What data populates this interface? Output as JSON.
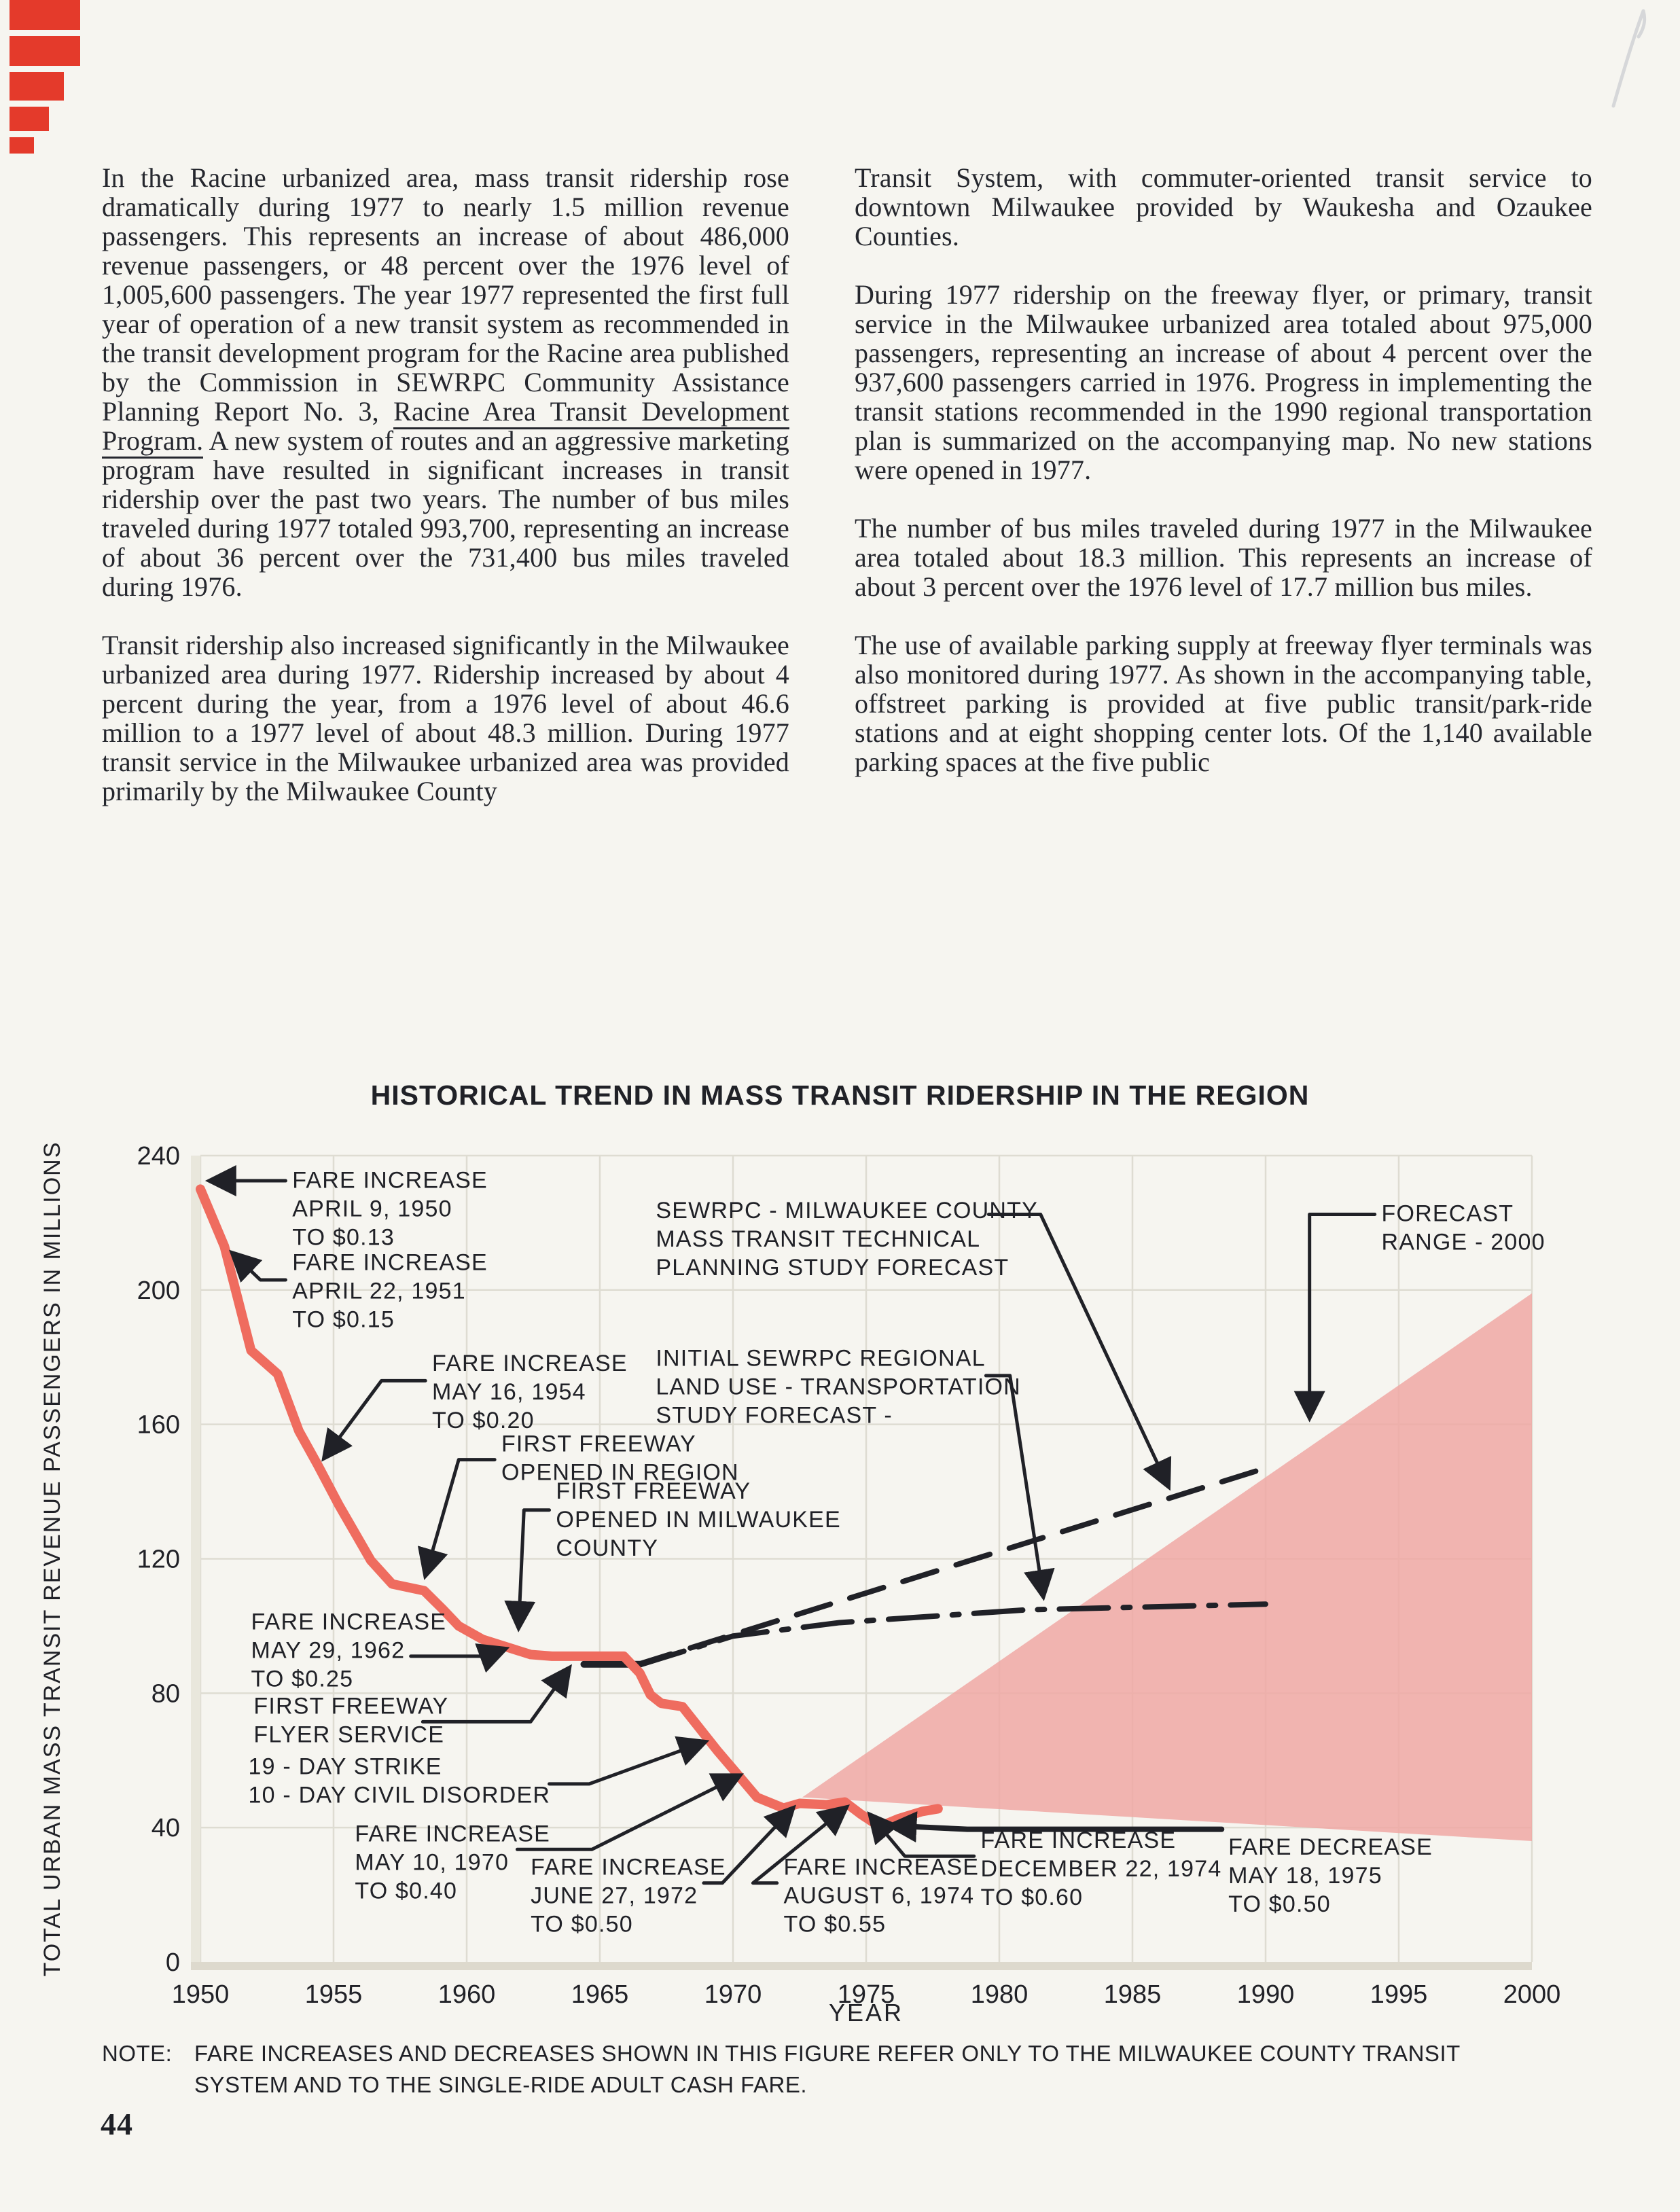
{
  "page": {
    "background": "#f6f5f0",
    "page_number": "44"
  },
  "corner_marks": {
    "color": "#e43a2b",
    "bars": [
      {
        "w": 104,
        "h": 44
      },
      {
        "w": 104,
        "h": 44
      },
      {
        "w": 80,
        "h": 42
      },
      {
        "w": 58,
        "h": 36
      },
      {
        "w": 36,
        "h": 24
      }
    ]
  },
  "article": {
    "columns": [
      [
        [
          {
            "t": "In the Racine urbanized area, mass transit ridership rose dramatically during 1977 to nearly 1.5 million revenue passengers. This represents an increase of about 486,000 revenue passengers, or 48 percent over the 1976 level of 1,005,600 passengers. The year 1977 represented the first full year of operation of a new transit system as recommended in the transit development program for the Racine area published by the Commission in SEWRPC Community Assistance Planning Report No. 3, "
          },
          {
            "t": "Racine Area Transit Development Program.",
            "u": true
          },
          {
            "t": " A new system of routes and an aggressive marketing program have resulted in significant increases in transit ridership over the past two years. The number of bus miles traveled during 1977 totaled 993,700, representing an increase of about 36 percent over the 731,400 bus miles traveled during 1976."
          }
        ],
        [
          {
            "t": "Transit ridership also increased significantly in the Milwaukee urbanized area during 1977. Ridership increased by about 4 percent during the year, from a 1976 level of about 46.6 million to a 1977 level of about 48.3 million. During 1977 transit service in the Milwaukee urbanized area was provided primarily by the Milwaukee County"
          }
        ]
      ],
      [
        [
          {
            "t": "Transit System, with commuter-oriented transit service to downtown Milwaukee provided by Waukesha and Ozaukee Counties."
          }
        ],
        [
          {
            "t": "During 1977 ridership on the freeway flyer, or primary, transit service in the Milwaukee urbanized area totaled about 975,000 passengers, representing an increase of about 4 percent over the 937,600 passengers carried in 1976. Progress in implementing the transit stations recommended in the 1990 regional transportation plan is summarized on the accompanying map. No new stations were opened in 1977."
          }
        ],
        [
          {
            "t": "The number of bus miles traveled during 1977 in the Milwaukee area totaled about 18.3 million. This represents an increase of about 3 percent over the 1976 level of 17.7 million bus miles."
          }
        ],
        [
          {
            "t": "The use of available parking supply at freeway flyer terminals was also monitored during 1977. As shown in the accompanying table, offstreet parking is provided at five public transit/park-ride stations and at eight shopping center lots. Of the 1,140 available parking spaces at the five public"
          }
        ]
      ]
    ]
  },
  "note": {
    "label": "NOTE:",
    "text": "FARE INCREASES AND DECREASES SHOWN IN THIS FIGURE REFER ONLY TO THE MILWAUKEE COUNTY TRANSIT SYSTEM AND TO THE SINGLE-RIDE ADULT CASH FARE."
  },
  "chart_data": {
    "type": "line",
    "title": "HISTORICAL TREND IN MASS TRANSIT RIDERSHIP IN THE REGION",
    "xlabel": "YEAR",
    "ylabel": "TOTAL URBAN MASS TRANSIT REVENUE PASSENGERS IN MILLIONS",
    "xlim": [
      1950,
      2000
    ],
    "ylim": [
      0,
      240
    ],
    "xticks": [
      1950,
      1955,
      1960,
      1965,
      1970,
      1975,
      1980,
      1985,
      1990,
      1995,
      2000
    ],
    "yticks": [
      0,
      40,
      80,
      120,
      160,
      200,
      240
    ],
    "grid": true,
    "colors": {
      "grid": "#dedcd2",
      "ink": "#202127",
      "red_line": "#ef6c5f",
      "band": "#f0a8a5",
      "axis_band": "#ddd9cd"
    },
    "series": [
      {
        "name": "sewrpc-milwaukee-county-forecast",
        "style": "dashed",
        "color": "#202127",
        "width": 8,
        "dash": "52 30",
        "points": [
          [
            1966.4,
            88.5
          ],
          [
            1990,
            147
          ]
        ]
      },
      {
        "name": "initial-sewrpc-forecast",
        "style": "dashdot",
        "color": "#202127",
        "width": 8,
        "dash": "72 22 10 22",
        "points": [
          [
            1966.4,
            88.2
          ],
          [
            1970,
            97
          ],
          [
            1974,
            101
          ],
          [
            1981,
            104.8
          ],
          [
            1990,
            106.5
          ]
        ]
      },
      {
        "name": "forecast-base-segment",
        "style": "solid",
        "color": "#202127",
        "width": 10,
        "dash": null,
        "points": [
          [
            1964.4,
            88.6
          ],
          [
            1966.5,
            88.6
          ]
        ]
      },
      {
        "name": "actual-ridership",
        "style": "solid",
        "color": "#ef6c5f",
        "width": 14,
        "dash": null,
        "points": [
          [
            1950,
            230
          ],
          [
            1950.9,
            213
          ],
          [
            1951.9,
            182
          ],
          [
            1952.9,
            175
          ],
          [
            1953.7,
            158
          ],
          [
            1954.4,
            148
          ],
          [
            1955.2,
            136
          ],
          [
            1956.4,
            119.5
          ],
          [
            1957.2,
            112.5
          ],
          [
            1958.4,
            110.5
          ],
          [
            1959.1,
            105
          ],
          [
            1959.7,
            100
          ],
          [
            1960.6,
            96
          ],
          [
            1961.6,
            93.5
          ],
          [
            1962.4,
            91.5
          ],
          [
            1963.2,
            91
          ],
          [
            1965.9,
            91
          ],
          [
            1966.5,
            86
          ],
          [
            1966.9,
            79.5
          ],
          [
            1967.3,
            77
          ],
          [
            1968.1,
            76
          ],
          [
            1968.7,
            70
          ],
          [
            1969.4,
            63
          ],
          [
            1970.1,
            56.5
          ],
          [
            1970.9,
            49
          ],
          [
            1971.9,
            45.8
          ],
          [
            1972.5,
            47.2
          ],
          [
            1973.5,
            46.8
          ],
          [
            1974.2,
            47.6
          ],
          [
            1974.8,
            44
          ],
          [
            1975.5,
            40.3
          ],
          [
            1976.2,
            42.6
          ],
          [
            1977.1,
            44.8
          ],
          [
            1977.7,
            45.6
          ]
        ]
      }
    ],
    "forecast_band": {
      "name": "forecast-range-2000-band",
      "color": "#f0a8a5",
      "points": [
        [
          1972.6,
          49
        ],
        [
          2000,
          199
        ],
        [
          2000,
          36
        ]
      ]
    },
    "annotations": [
      {
        "id": "fare-increase-1950",
        "lines": [
          "FARE INCREASE",
          "APRIL 9, 1950",
          "TO $0.13"
        ],
        "tx": 1953.45,
        "ty": 236.5,
        "leader": [
          [
            1953.2,
            232.5
          ],
          [
            1950.35,
            232.5
          ]
        ],
        "arrow": true
      },
      {
        "id": "fare-increase-1951",
        "lines": [
          "FARE INCREASE",
          "APRIL 22, 1951",
          "TO $0.15"
        ],
        "tx": 1953.45,
        "ty": 212,
        "leader": [
          [
            1953.2,
            203
          ],
          [
            1952.25,
            203
          ],
          [
            1951.2,
            211
          ]
        ],
        "arrow": true
      },
      {
        "id": "fare-increase-1954",
        "lines": [
          "FARE INCREASE",
          "MAY 16, 1954",
          "TO $0.20"
        ],
        "tx": 1958.7,
        "ty": 182,
        "leader": [
          [
            1958.45,
            173
          ],
          [
            1956.8,
            173
          ],
          [
            1954.65,
            150
          ]
        ],
        "arrow": true
      },
      {
        "id": "first-freeway-region",
        "lines": [
          "FIRST FREEWAY",
          "OPENED IN REGION"
        ],
        "tx": 1961.3,
        "ty": 158,
        "leader": [
          [
            1961.05,
            149.5
          ],
          [
            1959.7,
            149.5
          ],
          [
            1958.45,
            115
          ]
        ],
        "arrow": true
      },
      {
        "id": "first-freeway-milwaukee",
        "lines": [
          "FIRST FREEWAY",
          "OPENED IN MILWAUKEE",
          "COUNTY"
        ],
        "tx": 1963.35,
        "ty": 144,
        "leader": [
          [
            1963.1,
            134.5
          ],
          [
            1962.15,
            134.5
          ],
          [
            1961.95,
            99.5
          ]
        ],
        "arrow": true
      },
      {
        "id": "fare-increase-1962",
        "lines": [
          "FARE INCREASE",
          "MAY 29, 1962",
          "TO $0.25"
        ],
        "tx": 1951.9,
        "ty": 105,
        "leader": [
          [
            1957.9,
            91
          ],
          [
            1960.7,
            91
          ],
          [
            1961.45,
            93.2
          ]
        ],
        "arrow": true
      },
      {
        "id": "first-freeway-flyer",
        "lines": [
          "FIRST FREEWAY",
          "FLYER SERVICE"
        ],
        "tx": 1952.0,
        "ty": 80,
        "leader": [
          [
            1958.35,
            71.5
          ],
          [
            1962.4,
            71.5
          ],
          [
            1963.85,
            87.5
          ]
        ],
        "arrow": true
      },
      {
        "id": "strike-civil-disorder",
        "lines": [
          "19 - DAY STRIKE",
          "10 - DAY CIVIL DISORDER"
        ],
        "tx": 1951.8,
        "ty": 62,
        "leader": [
          [
            1963.1,
            53
          ],
          [
            1964.6,
            53
          ],
          [
            1968.95,
            65.5
          ]
        ],
        "arrow": true
      },
      {
        "id": "fare-increase-1970",
        "lines": [
          "FARE INCREASE",
          "MAY 10, 1970",
          "TO $0.40"
        ],
        "tx": 1955.8,
        "ty": 42,
        "leader": [
          [
            1961.9,
            33.5
          ],
          [
            1964.7,
            33.5
          ],
          [
            1970.25,
            55.5
          ]
        ],
        "arrow": true
      },
      {
        "id": "fare-increase-1972",
        "lines": [
          "FARE INCREASE",
          "JUNE 27, 1972",
          "TO $0.50"
        ],
        "tx": 1962.4,
        "ty": 32,
        "leader": [
          [
            1968.9,
            23.5
          ],
          [
            1969.6,
            23.5
          ],
          [
            1972.25,
            45.8
          ]
        ],
        "arrow": true
      },
      {
        "id": "fare-increase-aug-1974",
        "lines": [
          "FARE INCREASE",
          "AUGUST 6, 1974",
          "TO $0.55"
        ],
        "tx": 1971.9,
        "ty": 32,
        "leader": [
          [
            1971.65,
            23.5
          ],
          [
            1970.75,
            23.5
          ],
          [
            1974.25,
            46
          ]
        ],
        "arrow": true
      },
      {
        "id": "fare-increase-dec-1974",
        "lines": [
          "FARE INCREASE",
          "DECEMBER 22, 1974",
          "TO $0.60"
        ],
        "tx": 1979.3,
        "ty": 40,
        "leader": [
          [
            1979.05,
            31.5
          ],
          [
            1976.45,
            31.5
          ],
          [
            1975.15,
            43.8
          ]
        ],
        "arrow": true
      },
      {
        "id": "fare-decrease-1975",
        "lines": [
          "FARE DECREASE",
          "MAY 18, 1975",
          "TO $0.50"
        ],
        "tx": 1988.6,
        "ty": 38,
        "lw": 8,
        "leader": [
          [
            1988.35,
            39.5
          ],
          [
            1978.8,
            39.5
          ],
          [
            1975.9,
            40.6
          ]
        ],
        "arrow": true
      },
      {
        "id": "sewrpc-study-forecast",
        "lines": [
          "SEWRPC - MILWAUKEE COUNTY",
          "MASS TRANSIT TECHNICAL",
          "PLANNING STUDY FORECAST"
        ],
        "tx": 1967.1,
        "ty": 227.5,
        "leader": [
          [
            1979.6,
            222.5
          ],
          [
            1981.55,
            222.5
          ],
          [
            1986.35,
            141.5
          ]
        ],
        "arrow": true
      },
      {
        "id": "initial-sewrpc-forecast-label",
        "lines": [
          "INITIAL SEWRPC REGIONAL",
          "LAND USE - TRANSPORTATION",
          "STUDY FORECAST -"
        ],
        "tx": 1967.1,
        "ty": 183.5,
        "leader": [
          [
            1979.5,
            174.5
          ],
          [
            1980.4,
            174.5
          ],
          [
            1981.65,
            108.8
          ]
        ],
        "arrow": true
      },
      {
        "id": "forecast-range-label",
        "lines": [
          "FORECAST",
          "RANGE - 2000"
        ],
        "tx": 1994.35,
        "ty": 226.5,
        "leader": [
          [
            1994.1,
            222.5
          ],
          [
            1991.65,
            222.5
          ],
          [
            1991.65,
            162
          ]
        ],
        "arrow": true
      }
    ]
  }
}
